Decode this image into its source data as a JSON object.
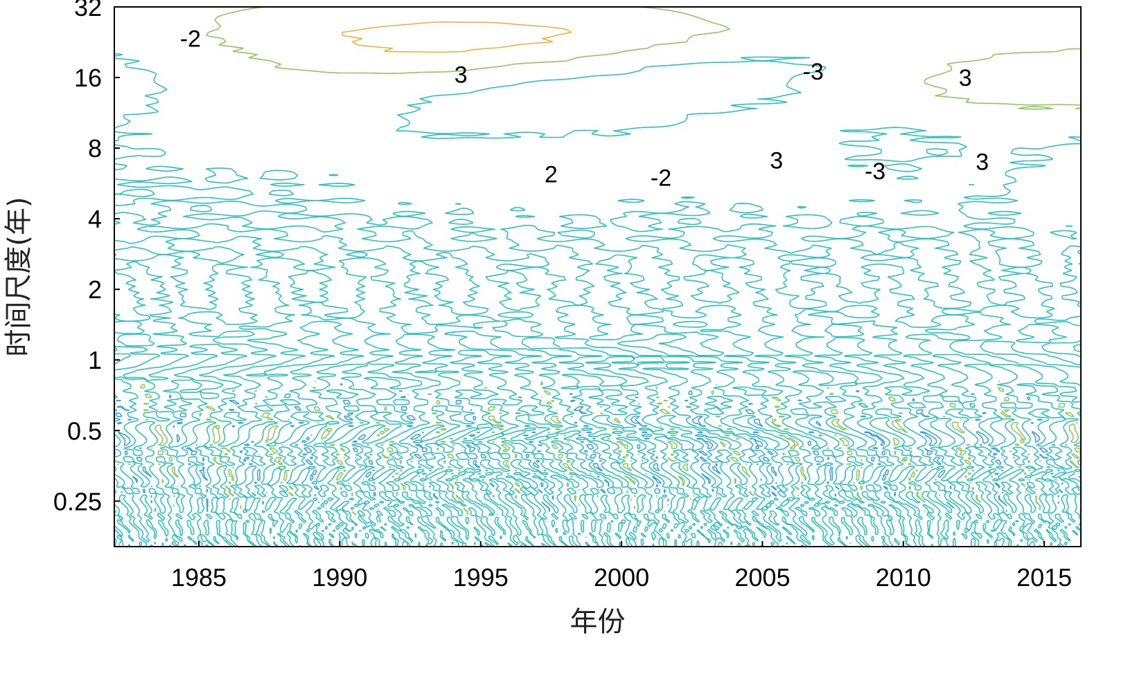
{
  "chart_data": {
    "type": "contour",
    "title": "",
    "xlabel": "年份",
    "ylabel": "时间尺度(年)",
    "xlim": [
      1982,
      2016.3
    ],
    "ylim": [
      0.16,
      32
    ],
    "y_scale": "log2",
    "x_ticks": [
      {
        "value": 1985,
        "label": "1985"
      },
      {
        "value": 1990,
        "label": "1990"
      },
      {
        "value": 1995,
        "label": "1995"
      },
      {
        "value": 2000,
        "label": "2000"
      },
      {
        "value": 2005,
        "label": "2005"
      },
      {
        "value": 2010,
        "label": "2010"
      },
      {
        "value": 2015,
        "label": "2015"
      }
    ],
    "y_ticks": [
      {
        "value": 0.25,
        "label": "0.25"
      },
      {
        "value": 0.5,
        "label": "0.5"
      },
      {
        "value": 1,
        "label": "1"
      },
      {
        "value": 2,
        "label": "2"
      },
      {
        "value": 4,
        "label": "4"
      },
      {
        "value": 8,
        "label": "8"
      },
      {
        "value": 16,
        "label": "16"
      },
      {
        "value": 32,
        "label": "32"
      }
    ],
    "levels": [
      -3,
      -2,
      -1,
      0,
      1,
      2,
      3
    ],
    "level_colors": {
      "-3": "#4b4fc8",
      "-2": "#5e7fe0",
      "-1": "#3d9fe0",
      "0": "#2cc0c0",
      "1": "#8cc85a",
      "2": "#f0b040",
      "3": "#f2e21c"
    },
    "centers": [
      {
        "year": 1985.0,
        "scale": 22,
        "value": -2
      },
      {
        "year": 1983.5,
        "scale": 11,
        "value": -1
      },
      {
        "year": 1988.4,
        "scale": 10.5,
        "value": 2
      },
      {
        "year": 1994.2,
        "scale": 21,
        "value": 3
      },
      {
        "year": 1994.0,
        "scale": 10,
        "value": -1.5
      },
      {
        "year": 1998.0,
        "scale": 7,
        "value": 2
      },
      {
        "year": 2001.5,
        "scale": 6.8,
        "value": -2
      },
      {
        "year": 2005.8,
        "scale": 18,
        "value": -3
      },
      {
        "year": 2005.3,
        "scale": 7.0,
        "value": 3
      },
      {
        "year": 2009.2,
        "scale": 7.0,
        "value": -3
      },
      {
        "year": 2013.2,
        "scale": 16.5,
        "value": 3
      },
      {
        "year": 2012.3,
        "scale": 6.6,
        "value": 2.5
      },
      {
        "year": 2016.2,
        "scale": 6,
        "value": -1.5
      },
      {
        "year": 1991.0,
        "scale": 26,
        "value": 1.5
      }
    ],
    "contour_labels": [
      {
        "year": 1984.7,
        "scale": 23.5,
        "text": "-2"
      },
      {
        "year": 1994.3,
        "scale": 16.5,
        "text": "3"
      },
      {
        "year": 2006.8,
        "scale": 17,
        "text": "-3"
      },
      {
        "year": 2012.2,
        "scale": 16,
        "text": "3"
      },
      {
        "year": 1997.5,
        "scale": 6.2,
        "text": "2"
      },
      {
        "year": 2001.4,
        "scale": 6.0,
        "text": "-2"
      },
      {
        "year": 2005.5,
        "scale": 7.1,
        "text": "3"
      },
      {
        "year": 2009.0,
        "scale": 6.4,
        "text": "-3"
      },
      {
        "year": 2012.8,
        "scale": 7.0,
        "text": "3"
      }
    ]
  }
}
